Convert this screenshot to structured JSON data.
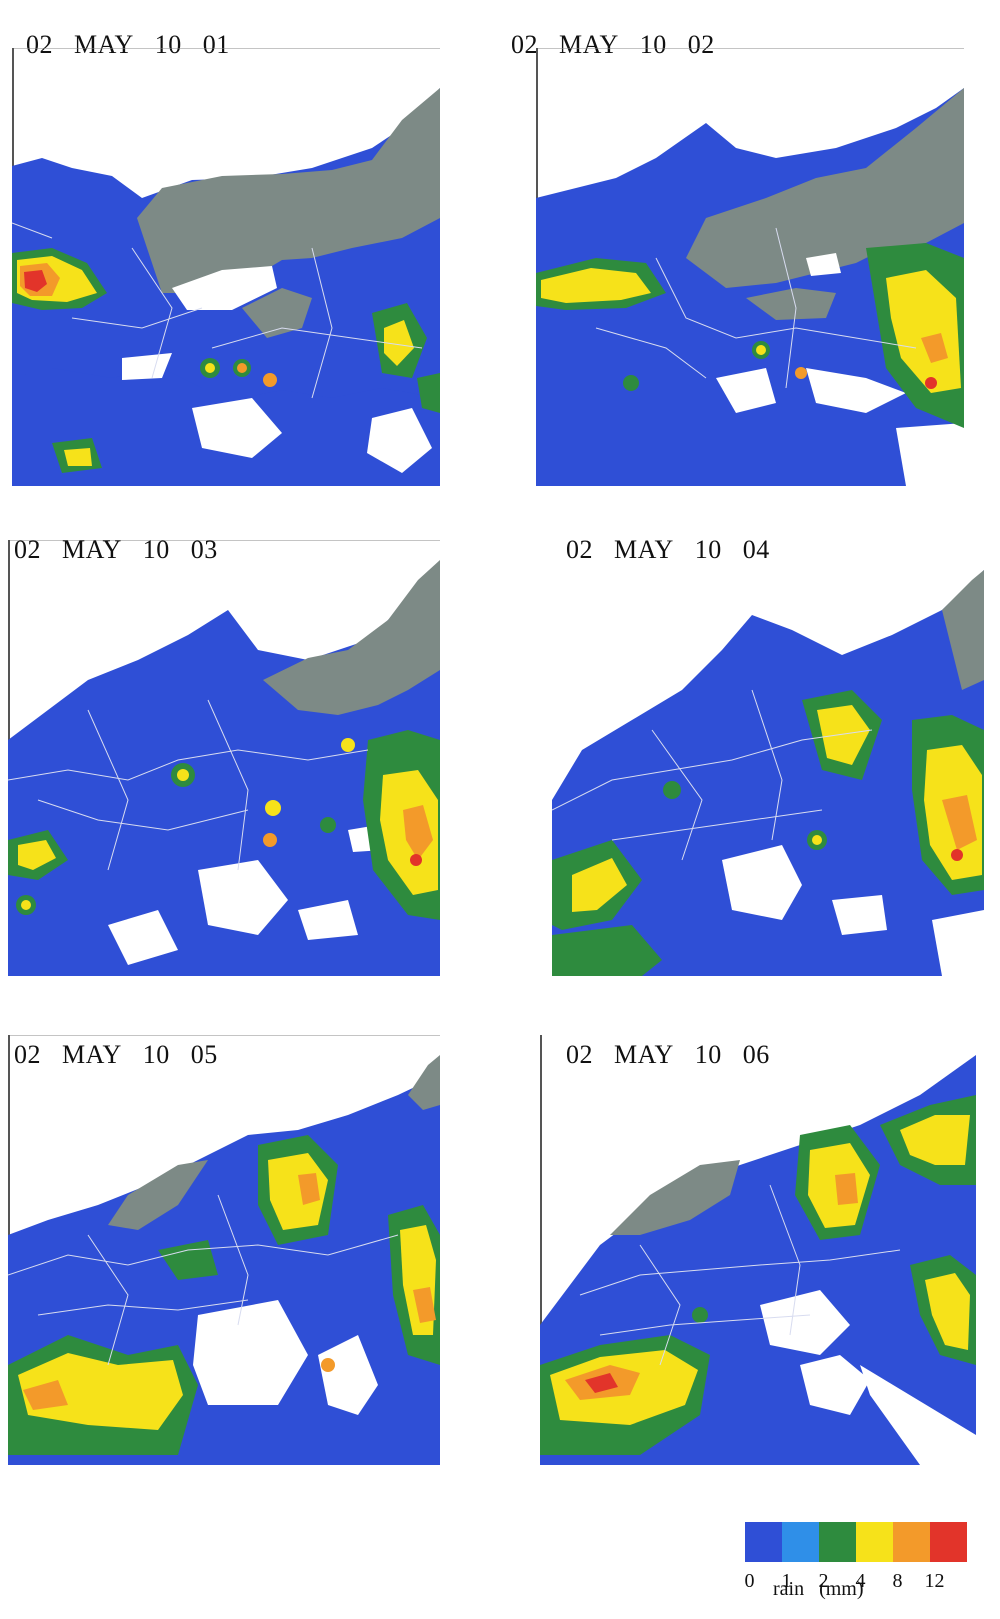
{
  "panels": [
    {
      "day": "02",
      "month": "MAY",
      "hour": "10",
      "minute": "01"
    },
    {
      "day": "02",
      "month": "MAY",
      "hour": "10",
      "minute": "02"
    },
    {
      "day": "02",
      "month": "MAY",
      "hour": "10",
      "minute": "03"
    },
    {
      "day": "02",
      "month": "MAY",
      "hour": "10",
      "minute": "04"
    },
    {
      "day": "02",
      "month": "MAY",
      "hour": "10",
      "minute": "05"
    },
    {
      "day": "02",
      "month": "MAY",
      "hour": "10",
      "minute": "06"
    }
  ],
  "legend": {
    "colors": [
      "#2f4fd6",
      "#2f8fe8",
      "#2e8b3e",
      "#f6e21a",
      "#f39a2a",
      "#e2342a"
    ],
    "ticks": [
      "0",
      "1",
      "2",
      "4",
      "8",
      "12"
    ],
    "quantity": "rain",
    "unit": "(mm)"
  },
  "map_colors": {
    "no_rain": "#ffffff",
    "land_relief": "#7d8a86",
    "rain_0_1": "#2f4fd6",
    "rain_2_4": "#2e8b3e",
    "rain_4_8": "#f6e21a",
    "rain_8_12": "#f39a2a",
    "rain_12_plus": "#e2342a",
    "boundaries": "#d8dcf0"
  }
}
